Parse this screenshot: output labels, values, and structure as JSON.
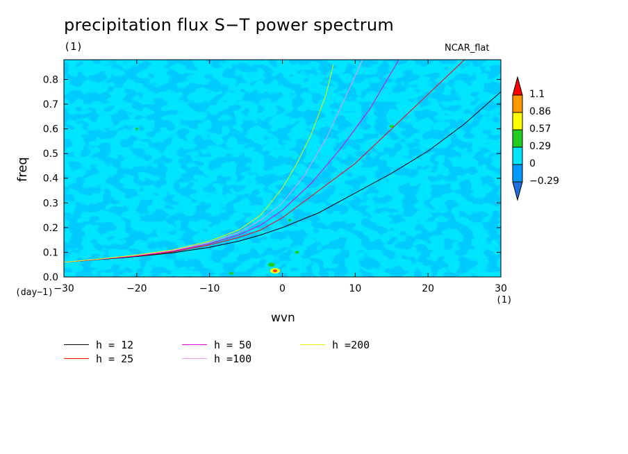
{
  "header": {
    "title": "precipitation flux S−T power spectrum",
    "subtitle": "(1)",
    "colormap": "NCAR_flat"
  },
  "chart_data": {
    "type": "heatmap",
    "title": "precipitation flux S−T power spectrum",
    "xlabel": "wvn",
    "ylabel": "freq",
    "x_unit": "(1)",
    "y_unit": "(day−1)",
    "xlim": [
      -30,
      30
    ],
    "ylim": [
      0,
      0.88
    ],
    "x_ticks": [
      -30,
      -20,
      -10,
      0,
      10,
      20,
      30
    ],
    "x_tick_labels": [
      "−30",
      "−20",
      "−10",
      "0",
      "10",
      "20",
      "30"
    ],
    "y_ticks": [
      0.0,
      0.1,
      0.2,
      0.3,
      0.4,
      0.5,
      0.6,
      0.7,
      0.8
    ],
    "y_tick_labels": [
      "0.0",
      "0.1",
      "0.2",
      "0.3",
      "0.4",
      "0.5",
      "0.6",
      "0.7",
      "0.8"
    ],
    "colorbar": {
      "labels": [
        "−0.29",
        "0",
        "0.29",
        "0.57",
        "0.86",
        "1.1"
      ],
      "colors": [
        "#1e6fe0",
        "#0099ff",
        "#00e5ff",
        "#22cc22",
        "#ffff00",
        "#ff9900",
        "#ff0000"
      ],
      "colors_note": "from lowest (below -0.29) to highest (above 1.1)"
    },
    "dominant_field": "values mostly between -0.29 and 0.29 (cyan / blue mottled field), isolated positive spots near wvn -1, freq 0.03",
    "series": [
      {
        "name": "h = 12",
        "color": "#000000",
        "x": [
          -30,
          -25,
          -20,
          -15,
          -10,
          -6,
          -3,
          0,
          5,
          10,
          15,
          20,
          25,
          30
        ],
        "y": [
          0.06,
          0.071,
          0.083,
          0.098,
          0.12,
          0.145,
          0.17,
          0.2,
          0.26,
          0.34,
          0.42,
          0.51,
          0.62,
          0.75
        ]
      },
      {
        "name": "h = 25",
        "color": "#ff0000",
        "x": [
          -30,
          -25,
          -20,
          -15,
          -10,
          -6,
          -3,
          0,
          5,
          10,
          15,
          20,
          25
        ],
        "y": [
          0.06,
          0.072,
          0.085,
          0.102,
          0.13,
          0.16,
          0.19,
          0.24,
          0.35,
          0.46,
          0.6,
          0.74,
          0.88
        ]
      },
      {
        "name": "h = 50",
        "color": "#dd00dd",
        "x": [
          -30,
          -25,
          -20,
          -15,
          -10,
          -6,
          -3,
          0,
          4,
          8,
          12,
          16
        ],
        "y": [
          0.06,
          0.072,
          0.086,
          0.105,
          0.135,
          0.17,
          0.21,
          0.27,
          0.38,
          0.52,
          0.68,
          0.88
        ]
      },
      {
        "name": "h =100",
        "color": "#ee99ee",
        "x": [
          -30,
          -25,
          -20,
          -15,
          -10,
          -6,
          -3,
          0,
          3,
          6,
          9,
          11
        ],
        "y": [
          0.06,
          0.073,
          0.088,
          0.108,
          0.14,
          0.18,
          0.23,
          0.3,
          0.41,
          0.56,
          0.75,
          0.88
        ]
      },
      {
        "name": "h =200",
        "color": "#eeee00",
        "x": [
          -30,
          -25,
          -20,
          -15,
          -10,
          -6,
          -3,
          0,
          2,
          4,
          6,
          7
        ],
        "y": [
          0.06,
          0.073,
          0.089,
          0.11,
          0.145,
          0.19,
          0.25,
          0.36,
          0.46,
          0.58,
          0.74,
          0.86
        ]
      }
    ]
  }
}
